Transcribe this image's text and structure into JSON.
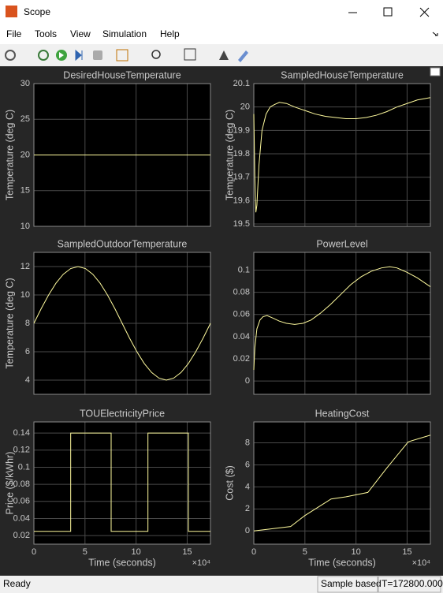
{
  "window_title": "Scope",
  "menu": [
    "File",
    "Tools",
    "View",
    "Simulation",
    "Help"
  ],
  "status": {
    "left": "Ready",
    "mode": "Sample based",
    "time": "T=172800.000"
  },
  "chart_data": [
    {
      "type": "line",
      "title": "DesiredHouseTemperature",
      "ylabel": "Temperature (deg C)",
      "x": [
        0,
        172800
      ],
      "values": [
        20,
        20
      ],
      "color": "#fffb9e",
      "xlim": [
        0,
        172800
      ],
      "xticks": [
        0,
        50000,
        100000,
        150000
      ],
      "ylim": [
        10,
        30
      ],
      "yticks": [
        10,
        15,
        20,
        25,
        30
      ],
      "grid": true
    },
    {
      "type": "line",
      "title": "SampledHouseTemperature",
      "ylabel": "Temperature (deg C)",
      "x": [
        0,
        1000,
        2000,
        3000,
        5000,
        8000,
        12000,
        16000,
        20000,
        25000,
        32000,
        40000,
        50000,
        60000,
        70000,
        80000,
        90000,
        100000,
        110000,
        120000,
        130000,
        140000,
        150000,
        160000,
        172800
      ],
      "values": [
        19.97,
        19.7,
        19.55,
        19.58,
        19.75,
        19.9,
        19.97,
        20.0,
        20.01,
        20.02,
        20.015,
        20.0,
        19.985,
        19.97,
        19.96,
        19.955,
        19.95,
        19.95,
        19.955,
        19.965,
        19.98,
        20.0,
        20.015,
        20.03,
        20.04
      ],
      "color": "#fffb9e",
      "xlim": [
        0,
        172800
      ],
      "xticks": [
        0,
        50000,
        100000,
        150000
      ],
      "ylim": [
        19.49,
        20.1
      ],
      "yticks": [
        19.5,
        19.6,
        19.7,
        19.8,
        19.9,
        20,
        20.1
      ],
      "grid": true
    },
    {
      "type": "line",
      "title": "SampledOutdoorTemperature",
      "ylabel": "Temperature (deg C)",
      "x": [
        0,
        7200,
        14400,
        21600,
        28800,
        36000,
        43200,
        50400,
        57600,
        64800,
        72000,
        79200,
        86400,
        93600,
        100800,
        108000,
        115200,
        122400,
        129600,
        136800,
        144000,
        151200,
        158400,
        165600,
        172800
      ],
      "values": [
        8,
        9.04,
        10,
        10.83,
        11.46,
        11.86,
        12,
        11.86,
        11.46,
        10.83,
        10,
        9.04,
        8,
        6.96,
        6,
        5.17,
        4.54,
        4.14,
        4,
        4.14,
        4.54,
        5.17,
        6,
        6.96,
        8
      ],
      "color": "#fffb9e",
      "xlim": [
        0,
        172800
      ],
      "xticks": [
        0,
        50000,
        100000,
        150000
      ],
      "ylim": [
        3,
        13
      ],
      "yticks": [
        4,
        6,
        8,
        10,
        12
      ],
      "grid": true
    },
    {
      "type": "line",
      "title": "PowerLevel",
      "x": [
        0,
        1000,
        3000,
        6000,
        9000,
        13000,
        18000,
        25000,
        32000,
        40000,
        48000,
        56000,
        65000,
        75000,
        85000,
        95000,
        105000,
        115000,
        125000,
        133000,
        140000,
        150000,
        160000,
        172800
      ],
      "values": [
        0.01,
        0.03,
        0.047,
        0.055,
        0.058,
        0.059,
        0.057,
        0.054,
        0.052,
        0.051,
        0.052,
        0.055,
        0.061,
        0.069,
        0.078,
        0.087,
        0.094,
        0.099,
        0.102,
        0.103,
        0.102,
        0.098,
        0.093,
        0.085
      ],
      "color": "#fffb9e",
      "xlim": [
        0,
        172800
      ],
      "xticks": [
        0,
        50000,
        100000,
        150000
      ],
      "ylim": [
        -0.012,
        0.116
      ],
      "yticks": [
        0,
        0.02,
        0.04,
        0.06,
        0.08,
        0.1
      ],
      "grid": true
    },
    {
      "type": "line",
      "title": "TOUElectricityPrice",
      "ylabel": "Price ($/kWhr)",
      "xlabel": "Time (seconds)",
      "x_exponent": "×10⁴",
      "x": [
        0,
        36000,
        36000,
        75600,
        75600,
        111600,
        111600,
        151200,
        151200,
        172800
      ],
      "values": [
        0.025,
        0.025,
        0.14,
        0.14,
        0.025,
        0.025,
        0.14,
        0.14,
        0.025,
        0.025
      ],
      "color": "#fffb9e",
      "xlim": [
        0,
        172800
      ],
      "xticks": [
        0,
        {
          "value": 50000,
          "label": "5"
        },
        {
          "value": 100000,
          "label": "10"
        },
        {
          "value": 150000,
          "label": "15"
        }
      ],
      "ylim": [
        0.01,
        0.153
      ],
      "yticks": [
        0.02,
        0.04,
        0.06,
        0.08,
        0.1,
        0.12,
        0.14
      ],
      "grid": true
    },
    {
      "type": "line",
      "title": "HeatingCost",
      "ylabel": "Cost ($)",
      "xlabel": "Time (seconds)",
      "x_exponent": "×10⁴",
      "x": [
        0,
        36000,
        50000,
        75600,
        90000,
        111600,
        130000,
        151200,
        172800
      ],
      "values": [
        0,
        0.4,
        1.4,
        2.9,
        3.1,
        3.5,
        5.7,
        8.1,
        8.7
      ],
      "color": "#fffb9e",
      "xlim": [
        0,
        172800
      ],
      "xticks": [
        0,
        {
          "value": 50000,
          "label": "5"
        },
        {
          "value": 100000,
          "label": "10"
        },
        {
          "value": 150000,
          "label": "15"
        }
      ],
      "ylim": [
        -1.2,
        9.9
      ],
      "yticks": [
        0,
        2,
        4,
        6,
        8
      ],
      "grid": true
    }
  ]
}
